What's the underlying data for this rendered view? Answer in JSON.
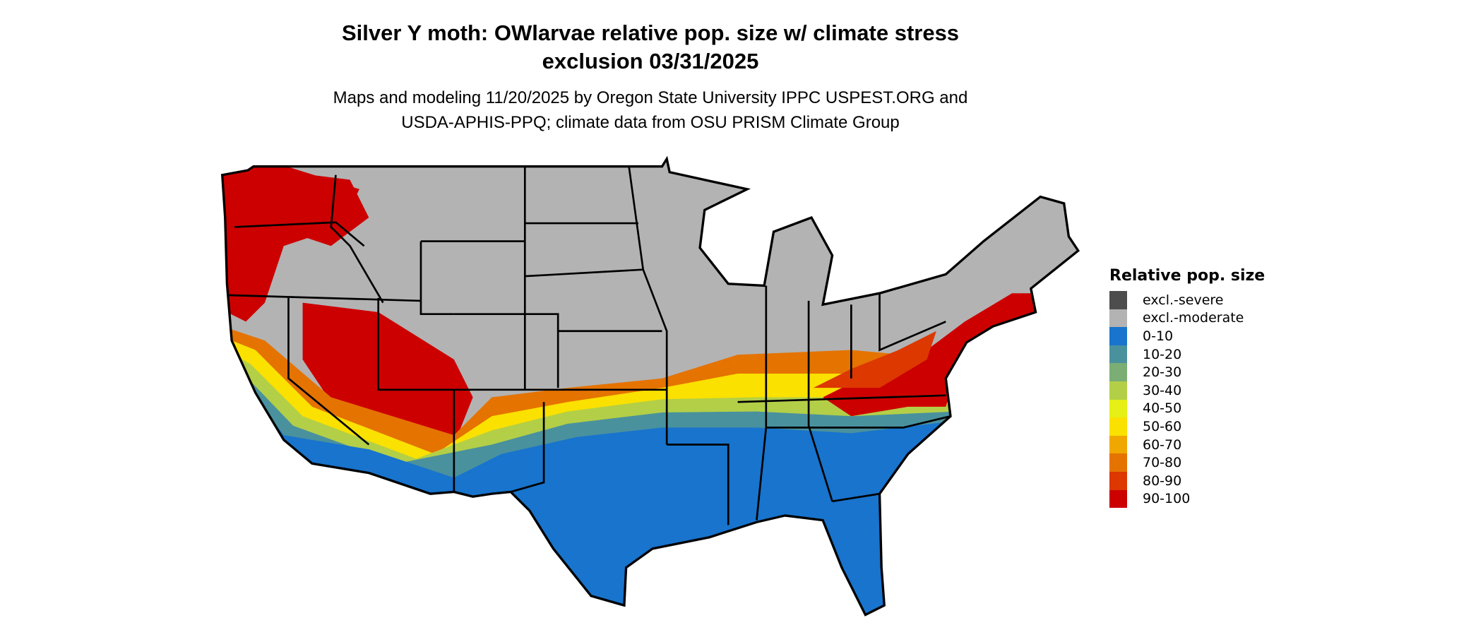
{
  "title": {
    "line1": "Silver Y moth: OWlarvae relative pop. size w/ climate stress",
    "line2": "exclusion 03/31/2025"
  },
  "subtitle": {
    "line1": "Maps and modeling 11/20/2025 by Oregon State University IPPC USPEST.ORG and",
    "line2": "USDA-APHIS-PPQ; climate data from OSU PRISM Climate Group"
  },
  "legend": {
    "title": "Relative pop. size",
    "items": [
      {
        "label": "excl.-severe",
        "color": "#4d4d4d"
      },
      {
        "label": "excl.-moderate",
        "color": "#b3b3b3"
      },
      {
        "label": "0-10",
        "color": "#1874cd"
      },
      {
        "label": "10-20",
        "color": "#4a919e"
      },
      {
        "label": "20-30",
        "color": "#7aae75"
      },
      {
        "label": "30-40",
        "color": "#b3cf47"
      },
      {
        "label": "40-50",
        "color": "#e6ef16"
      },
      {
        "label": "50-60",
        "color": "#fae100"
      },
      {
        "label": "60-70",
        "color": "#f0a800"
      },
      {
        "label": "70-80",
        "color": "#e57300"
      },
      {
        "label": "80-90",
        "color": "#dc3800"
      },
      {
        "label": "90-100",
        "color": "#cd0000"
      }
    ]
  }
}
